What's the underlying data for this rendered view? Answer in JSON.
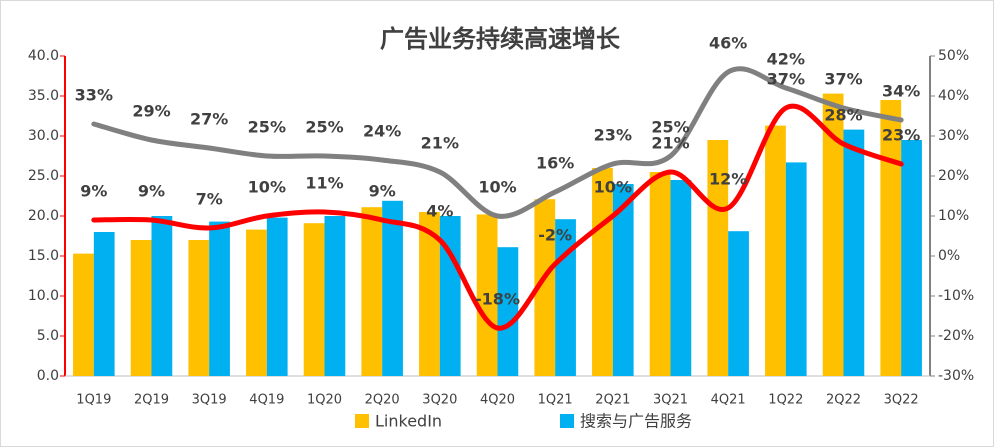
{
  "chart_data": {
    "type": "bar_line",
    "title": "广告业务持续高速增长",
    "categories": [
      "1Q19",
      "2Q19",
      "3Q19",
      "4Q19",
      "1Q20",
      "2Q20",
      "3Q20",
      "4Q20",
      "1Q21",
      "2Q21",
      "3Q21",
      "4Q21",
      "1Q22",
      "2Q22",
      "3Q22"
    ],
    "series": [
      {
        "name": "LinkedIn",
        "color": "#ffc000",
        "kind": "bar",
        "values": [
          15.3,
          17.0,
          17.0,
          18.3,
          19.1,
          21.1,
          20.5,
          20.2,
          22.1,
          26.0,
          25.5,
          29.5,
          31.3,
          35.3,
          34.5
        ]
      },
      {
        "name": "搜索与广告服务",
        "color": "#00b0f0",
        "kind": "bar",
        "values": [
          18.0,
          20.0,
          19.3,
          19.8,
          20.0,
          21.9,
          20.0,
          16.1,
          19.6,
          24.0,
          24.5,
          18.1,
          26.7,
          30.8,
          29.5
        ]
      },
      {
        "color": "#808080",
        "kind": "line",
        "axis": "y2",
        "values": [
          33,
          29,
          27,
          25,
          25,
          24,
          21,
          10,
          16,
          23,
          25,
          46,
          42,
          37,
          34
        ],
        "value_labels": [
          "33%",
          "29%",
          "27%",
          "25%",
          "25%",
          "24%",
          "21%",
          "10%",
          "16%",
          "23%",
          "25%",
          "46%",
          "42%",
          "37%",
          "34%"
        ]
      },
      {
        "color": "#ff0000",
        "kind": "line",
        "axis": "y2",
        "values": [
          9,
          9,
          7,
          10,
          11,
          9,
          4,
          -18,
          -2,
          10,
          21,
          12,
          37,
          28,
          23
        ],
        "value_labels": [
          "9%",
          "9%",
          "7%",
          "10%",
          "11%",
          "9%",
          "4%",
          "-18%",
          "-2%",
          "10%",
          "21%",
          "12%",
          "37%",
          "28%",
          "23%"
        ]
      }
    ],
    "ylim": [
      0,
      40
    ],
    "yticks": [
      {
        "value": 0,
        "label": "0.0"
      },
      {
        "value": 5,
        "label": "5.0"
      },
      {
        "value": 10,
        "label": "10.0"
      },
      {
        "value": 15,
        "label": "15.0"
      },
      {
        "value": 20,
        "label": "20.0"
      },
      {
        "value": 25,
        "label": "25.0"
      },
      {
        "value": 30,
        "label": "30.0"
      },
      {
        "value": 35,
        "label": "35.0"
      },
      {
        "value": 40,
        "label": "40.0"
      }
    ],
    "y2lim": [
      -30,
      50
    ],
    "y2ticks": [
      {
        "value": -30,
        "label": "-30%"
      },
      {
        "value": -20,
        "label": "-20%"
      },
      {
        "value": -10,
        "label": "-10%"
      },
      {
        "value": 0,
        "label": "0%"
      },
      {
        "value": 10,
        "label": "10%"
      },
      {
        "value": 20,
        "label": "20%"
      },
      {
        "value": 30,
        "label": "30%"
      },
      {
        "value": 40,
        "label": "40%"
      },
      {
        "value": 50,
        "label": "50%"
      }
    ]
  }
}
